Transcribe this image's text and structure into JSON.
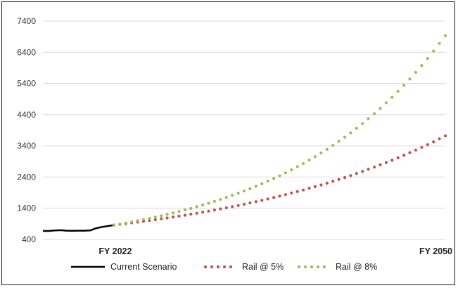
{
  "chart_data": {
    "type": "line",
    "title": "",
    "xlabel": "",
    "ylabel": "",
    "ylim": [
      400,
      7400
    ],
    "yticks": [
      400,
      1400,
      2400,
      3400,
      4400,
      5400,
      6400,
      7400
    ],
    "x_range": [
      2016,
      2050
    ],
    "x_ticks": [
      {
        "x": 2022,
        "label": "FY 2022"
      },
      {
        "x": 2050,
        "label": "FY 2050"
      }
    ],
    "grid": true,
    "legend_placement": "bottom",
    "series": [
      {
        "name": "Current Scenario",
        "style": "solid",
        "color": "#000000",
        "x": [
          2016,
          2016.5,
          2017,
          2017.5,
          2018,
          2018.5,
          2019,
          2019.5,
          2020,
          2020.5,
          2021,
          2021.5,
          2022
        ],
        "values": [
          670,
          670,
          690,
          695,
          680,
          675,
          680,
          680,
          690,
          760,
          800,
          830,
          860
        ]
      },
      {
        "name": "Rail @ 5%",
        "style": "dotted",
        "color": "#c0504d",
        "base_x": 2022,
        "base_value": 860,
        "growth_rate": 0.0537,
        "step": 0.5
      },
      {
        "name": "Rail @ 8%",
        "style": "dotted",
        "color": "#9bbb59",
        "base_x": 2022,
        "base_value": 860,
        "growth_rate": 0.0774,
        "step": 0.5
      }
    ]
  }
}
